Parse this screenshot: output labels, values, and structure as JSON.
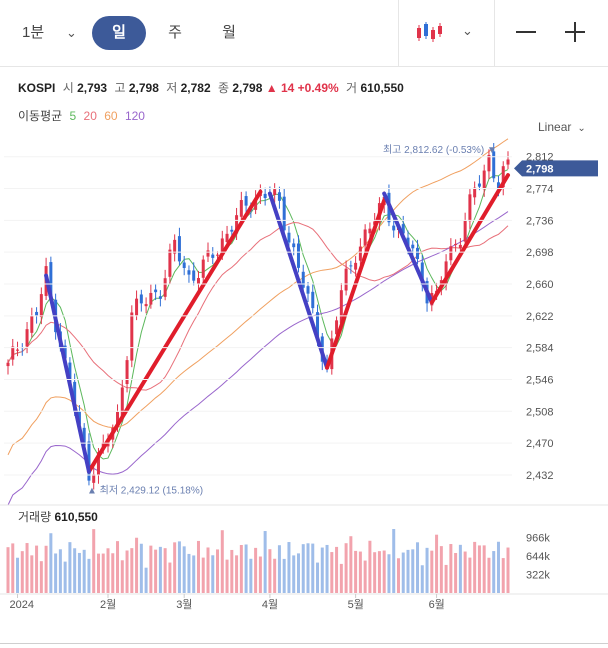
{
  "toolbar": {
    "period": "1분",
    "tabs": [
      "일",
      "주",
      "월"
    ],
    "selected_tab": "일"
  },
  "quote": {
    "name": "KOSPI",
    "open_label": "시",
    "open": "2,793",
    "high_label": "고",
    "high": "2,798",
    "low_label": "저",
    "low": "2,782",
    "close_label": "종",
    "close": "2,798",
    "change": "▲ 14",
    "change_pct": "+0.49%",
    "volume_label": "거",
    "volume": "610,550"
  },
  "ma": {
    "label": "이동평균",
    "periods": [
      "5",
      "20",
      "60",
      "120"
    ],
    "colors": [
      "#5cb85c",
      "#e8707a",
      "#f0a060",
      "#9966cc"
    ]
  },
  "scale_label": "Linear",
  "colors": {
    "up": "#e0334a",
    "down": "#2f6fd6",
    "accent": "#3d5a99",
    "draw_red": "#e01d2b",
    "draw_blue": "#4440c4"
  },
  "chart_data": {
    "type": "candlestick",
    "ylim": [
      2420,
      2820
    ],
    "y_ticks": [
      "2,812",
      "2,774",
      "2,736",
      "2,698",
      "2,660",
      "2,622",
      "2,584",
      "2,546",
      "2,508",
      "2,470",
      "2,432"
    ],
    "y_tick_values": [
      2812,
      2774,
      2736,
      2698,
      2660,
      2622,
      2584,
      2546,
      2508,
      2470,
      2432
    ],
    "x_ticks": [
      "2024",
      "2월",
      "3월",
      "4월",
      "5월",
      "6월"
    ],
    "x_tick_index": [
      2,
      21,
      37,
      55,
      73,
      90
    ],
    "current_price": "2,798",
    "current_value": 2798,
    "high_annotation": {
      "text": "최고 2,812.62 (-0.53%)",
      "index": 101,
      "value": 2812.62
    },
    "low_annotation": {
      "text": "최저 2,429.12 (15.18%)",
      "index": 17,
      "value": 2429.12
    },
    "volume_label": "거래량",
    "volume_value": "610,550",
    "volume_ticks": [
      "966k",
      "644k",
      "322k"
    ],
    "volume_tick_values": [
      966,
      644,
      322
    ],
    "drawn_lines": [
      {
        "color": "red",
        "from": [
          17,
          2436
        ],
        "to": [
          53,
          2770
        ]
      },
      {
        "color": "blue",
        "from": [
          8,
          2670
        ],
        "to": [
          17,
          2436
        ]
      },
      {
        "color": "blue",
        "from": [
          55,
          2768
        ],
        "to": [
          67,
          2560
        ]
      },
      {
        "color": "red",
        "from": [
          67,
          2560
        ],
        "to": [
          79,
          2760
        ]
      },
      {
        "color": "blue",
        "from": [
          79,
          2768
        ],
        "to": [
          89,
          2638
        ]
      },
      {
        "color": "red",
        "from": [
          89,
          2638
        ],
        "to": [
          105,
          2790
        ]
      }
    ],
    "anchors": [
      [
        0,
        2560
      ],
      [
        3,
        2598
      ],
      [
        6,
        2625
      ],
      [
        8,
        2670
      ],
      [
        11,
        2590
      ],
      [
        14,
        2510
      ],
      [
        17,
        2436
      ],
      [
        20,
        2462
      ],
      [
        23,
        2500
      ],
      [
        26,
        2625
      ],
      [
        29,
        2640
      ],
      [
        32,
        2655
      ],
      [
        35,
        2705
      ],
      [
        38,
        2668
      ],
      [
        41,
        2680
      ],
      [
        44,
        2702
      ],
      [
        47,
        2732
      ],
      [
        50,
        2752
      ],
      [
        53,
        2770
      ],
      [
        55,
        2768
      ],
      [
        57,
        2752
      ],
      [
        60,
        2700
      ],
      [
        63,
        2640
      ],
      [
        65,
        2600
      ],
      [
        67,
        2560
      ],
      [
        70,
        2650
      ],
      [
        73,
        2700
      ],
      [
        76,
        2725
      ],
      [
        79,
        2760
      ],
      [
        82,
        2720
      ],
      [
        85,
        2700
      ],
      [
        88,
        2650
      ],
      [
        90,
        2640
      ],
      [
        92,
        2690
      ],
      [
        95,
        2720
      ],
      [
        98,
        2770
      ],
      [
        100,
        2795
      ],
      [
        101,
        2812
      ],
      [
        103,
        2780
      ],
      [
        105,
        2798
      ]
    ]
  }
}
